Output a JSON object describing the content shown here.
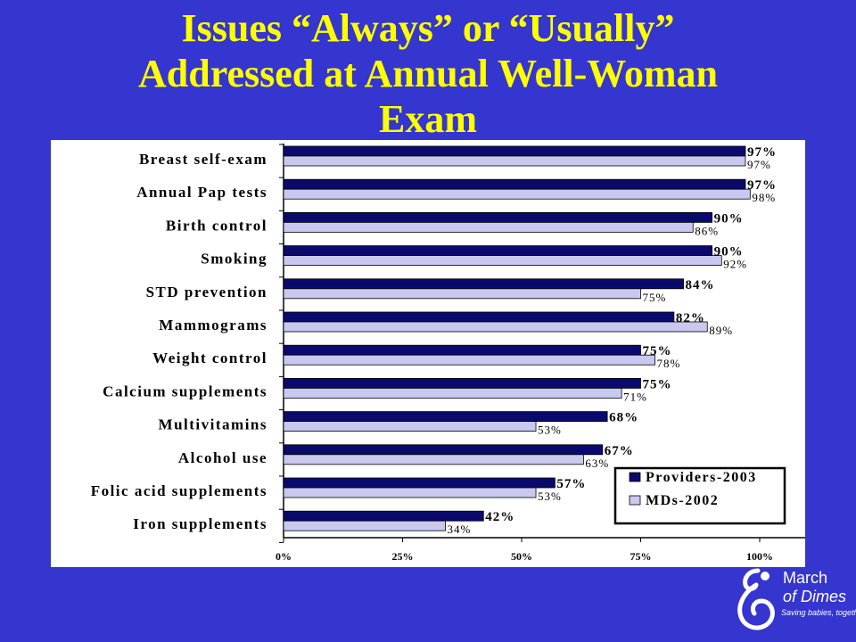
{
  "title": {
    "line1": "Issues “Always” or “Usually”",
    "line2": "Addressed at Annual Well-Woman",
    "line3": "Exam"
  },
  "colors": {
    "background": "#3535d0",
    "title": "#ffff00",
    "providers": "#0a0a6e",
    "mds": "#c8c8f0"
  },
  "logo": {
    "line1": "March",
    "line2": "of Dimes",
    "tagline": "Saving babies, together"
  },
  "chart_data": {
    "type": "bar",
    "orientation": "horizontal",
    "categories": [
      "Breast self-exam",
      "Annual Pap tests",
      "Birth control",
      "Smoking",
      "STD prevention",
      "Mammograms",
      "Weight control",
      "Calcium supplements",
      "Multivitamins",
      "Alcohol use",
      "Folic acid supplements",
      "Iron supplements"
    ],
    "series": [
      {
        "name": "Providers-2003",
        "values": [
          97,
          97,
          90,
          90,
          84,
          82,
          75,
          75,
          68,
          67,
          57,
          42
        ]
      },
      {
        "name": "MDs-2002",
        "values": [
          97,
          98,
          86,
          92,
          75,
          89,
          78,
          71,
          53,
          63,
          53,
          34
        ]
      }
    ],
    "value_labels": [
      [
        "97%",
        "97%",
        "90%",
        "90%",
        "84%",
        "82%",
        "75%",
        "75%",
        "68%",
        "67%",
        "57%",
        "42%"
      ],
      [
        "97%",
        "98%",
        "86%",
        "92%",
        "75%",
        "89%",
        "78%",
        "71%",
        "53%",
        "63%",
        "53%",
        "34%"
      ]
    ],
    "xlim": [
      0,
      100
    ],
    "x_ticks": [
      0,
      25,
      50,
      75,
      100
    ],
    "x_tick_labels": [
      "0%",
      "25%",
      "50%",
      "75%",
      "100%"
    ],
    "legend_position": "bottom-right",
    "grid": false
  }
}
